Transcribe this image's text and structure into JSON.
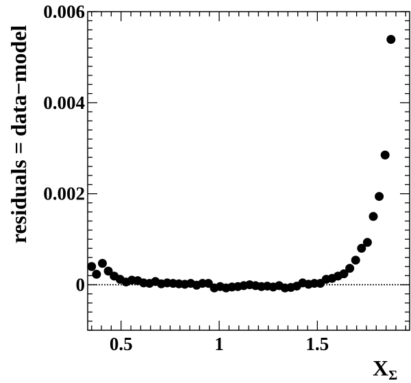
{
  "chart_data": {
    "type": "scatter",
    "title": "",
    "xlabel": "X",
    "xlabel_subscript": "Σ",
    "ylabel": "residuals = data−model",
    "xlim": [
      0.33,
      1.97
    ],
    "ylim": [
      -0.001,
      0.006
    ],
    "x_ticks": [
      {
        "value": 0.5,
        "label": "0.5"
      },
      {
        "value": 1,
        "label": "1"
      },
      {
        "value": 1.5,
        "label": "1.5"
      }
    ],
    "y_ticks": [
      {
        "value": 0,
        "label": "0"
      },
      {
        "value": 0.002,
        "label": "0.002"
      },
      {
        "value": 0.004,
        "label": "0.004"
      },
      {
        "value": 0.006,
        "label": "0.006"
      }
    ],
    "reference_line": {
      "y": 0,
      "style": "dotted"
    },
    "grid": false,
    "marker_color": "#000000",
    "points": [
      {
        "x": 0.35,
        "y": 0.0004
      },
      {
        "x": 0.375,
        "y": 0.00023
      },
      {
        "x": 0.405,
        "y": 0.00047
      },
      {
        "x": 0.435,
        "y": 0.0003
      },
      {
        "x": 0.465,
        "y": 0.00019
      },
      {
        "x": 0.495,
        "y": 0.00012
      },
      {
        "x": 0.525,
        "y": 6e-05
      },
      {
        "x": 0.555,
        "y": 0.0001
      },
      {
        "x": 0.585,
        "y": 9e-05
      },
      {
        "x": 0.615,
        "y": 4e-05
      },
      {
        "x": 0.645,
        "y": 3e-05
      },
      {
        "x": 0.675,
        "y": 7e-05
      },
      {
        "x": 0.705,
        "y": 2e-05
      },
      {
        "x": 0.735,
        "y": 4e-05
      },
      {
        "x": 0.765,
        "y": 3e-05
      },
      {
        "x": 0.795,
        "y": 2e-05
      },
      {
        "x": 0.825,
        "y": 1e-05
      },
      {
        "x": 0.855,
        "y": 3e-05
      },
      {
        "x": 0.885,
        "y": -1e-05
      },
      {
        "x": 0.915,
        "y": 3e-05
      },
      {
        "x": 0.945,
        "y": 3e-05
      },
      {
        "x": 0.975,
        "y": -7e-05
      },
      {
        "x": 1.005,
        "y": -4e-05
      },
      {
        "x": 1.035,
        "y": -7e-05
      },
      {
        "x": 1.065,
        "y": -5e-05
      },
      {
        "x": 1.095,
        "y": -4e-05
      },
      {
        "x": 1.125,
        "y": -2e-05
      },
      {
        "x": 1.155,
        "y": 0.0
      },
      {
        "x": 1.185,
        "y": -2e-05
      },
      {
        "x": 1.215,
        "y": -4e-05
      },
      {
        "x": 1.245,
        "y": -3e-05
      },
      {
        "x": 1.275,
        "y": -5e-05
      },
      {
        "x": 1.305,
        "y": -2e-05
      },
      {
        "x": 1.335,
        "y": -7e-05
      },
      {
        "x": 1.365,
        "y": -6e-05
      },
      {
        "x": 1.395,
        "y": -3e-05
      },
      {
        "x": 1.425,
        "y": 4e-05
      },
      {
        "x": 1.455,
        "y": 1e-05
      },
      {
        "x": 1.485,
        "y": 3e-05
      },
      {
        "x": 1.515,
        "y": 3e-05
      },
      {
        "x": 1.545,
        "y": 0.00012
      },
      {
        "x": 1.575,
        "y": 0.00014
      },
      {
        "x": 1.605,
        "y": 0.00019
      },
      {
        "x": 1.635,
        "y": 0.00024
      },
      {
        "x": 1.665,
        "y": 0.00036
      },
      {
        "x": 1.695,
        "y": 0.00054
      },
      {
        "x": 1.725,
        "y": 0.0008
      },
      {
        "x": 1.755,
        "y": 0.00093
      },
      {
        "x": 1.785,
        "y": 0.0015
      },
      {
        "x": 1.815,
        "y": 0.00194
      },
      {
        "x": 1.845,
        "y": 0.00285
      },
      {
        "x": 1.875,
        "y": 0.00539
      }
    ]
  }
}
